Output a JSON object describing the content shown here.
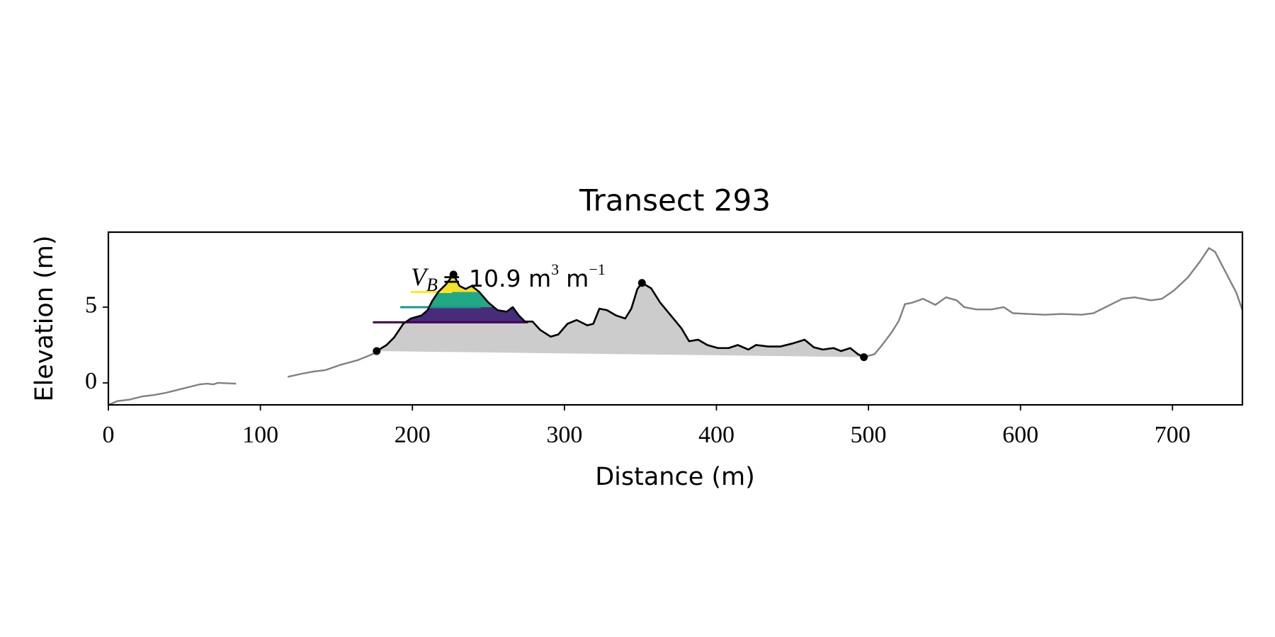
{
  "chart_data": {
    "type": "line",
    "title": "Transect 293",
    "xlabel": "Distance (m)",
    "ylabel": "Elevation (m)",
    "xlim": [
      0,
      746
    ],
    "ylim": [
      -1.45,
      9.95
    ],
    "xticks": [
      0,
      100,
      200,
      300,
      400,
      500,
      600,
      700
    ],
    "yticks": [
      0,
      5
    ],
    "grid": false,
    "annotation": {
      "symbol": "V",
      "subscript": "B",
      "text": "= 10.9 m",
      "exp1": "3",
      "unit2": "m",
      "exp2": "−1"
    },
    "series": [
      {
        "role": "profile",
        "color": "#808080",
        "x": [
          0,
          6,
          14,
          22,
          30,
          38,
          44,
          52,
          60,
          65,
          69,
          72,
          84,
          100,
          118,
          127,
          135,
          143,
          153,
          164,
          175,
          176.5,
          183,
          188,
          194,
          199,
          206,
          210,
          213,
          217,
          222,
          227,
          231,
          235,
          239,
          244,
          250,
          256,
          262,
          266,
          270,
          274,
          279,
          284,
          291,
          296,
          302,
          308,
          315,
          319,
          323,
          328,
          334,
          340,
          344,
          348,
          351,
          357,
          363,
          370,
          377,
          382,
          388,
          394,
          401,
          408,
          414,
          421,
          426,
          434,
          442,
          450,
          458,
          464,
          470,
          477,
          482,
          488,
          493,
          497,
          504,
          509,
          515,
          520,
          524,
          529,
          536,
          544,
          551,
          558,
          563,
          571,
          581,
          589,
          595,
          605,
          616,
          627,
          640,
          648,
          656,
          667,
          675,
          686,
          693,
          701,
          710,
          718,
          724,
          728,
          735,
          742,
          746
        ],
        "values": [
          -1.45,
          -1.2,
          -1.1,
          -0.9,
          -0.8,
          -0.65,
          -0.5,
          -0.3,
          -0.1,
          -0.05,
          -0.1,
          0,
          -0.05,
          null,
          0.4,
          0.6,
          0.75,
          0.85,
          1.2,
          1.5,
          1.95,
          2.1,
          2.5,
          3.0,
          3.9,
          4.25,
          4.45,
          4.8,
          5.4,
          6.0,
          6.5,
          7.15,
          6.4,
          6.2,
          6.4,
          6.0,
          5.3,
          4.8,
          4.7,
          5.0,
          4.45,
          4.05,
          4.05,
          3.5,
          3.05,
          3.2,
          3.9,
          4.15,
          3.8,
          3.9,
          4.9,
          4.8,
          4.45,
          4.25,
          4.9,
          6.2,
          6.6,
          6.25,
          5.3,
          4.45,
          3.6,
          2.75,
          2.85,
          2.5,
          2.3,
          2.3,
          2.5,
          2.2,
          2.5,
          2.4,
          2.4,
          2.6,
          2.85,
          2.35,
          2.2,
          2.3,
          2.1,
          2.3,
          1.9,
          1.7,
          1.9,
          2.5,
          3.3,
          4.1,
          5.2,
          5.3,
          5.55,
          5.15,
          5.65,
          5.45,
          5.0,
          4.85,
          4.85,
          5.0,
          4.6,
          4.55,
          4.5,
          4.55,
          4.5,
          4.6,
          5.0,
          5.55,
          5.65,
          5.45,
          5.55,
          6.1,
          6.95,
          8.0,
          8.9,
          8.65,
          7.3,
          5.95,
          4.8
        ]
      },
      {
        "role": "dune",
        "color": "#000000",
        "fill": "#cccccc",
        "x": [
          176.5,
          183,
          188,
          194,
          199,
          206,
          210,
          213,
          217,
          222,
          227,
          231,
          235,
          239,
          244,
          250,
          256,
          262,
          266,
          270,
          274,
          279,
          284,
          291,
          296,
          302,
          308,
          315,
          319,
          323,
          328,
          334,
          340,
          344,
          348,
          351,
          357,
          363,
          370,
          377,
          382,
          388,
          394,
          401,
          408,
          414,
          421,
          426,
          434,
          442,
          450,
          458,
          464,
          470,
          477,
          482,
          488,
          493,
          497
        ],
        "values": [
          2.1,
          2.5,
          3.0,
          3.9,
          4.25,
          4.45,
          4.8,
          5.4,
          6.0,
          6.5,
          7.15,
          6.4,
          6.2,
          6.4,
          6.0,
          5.3,
          4.8,
          4.7,
          5.0,
          4.45,
          4.05,
          4.05,
          3.5,
          3.05,
          3.2,
          3.9,
          4.15,
          3.8,
          3.9,
          4.9,
          4.8,
          4.45,
          4.25,
          4.9,
          6.2,
          6.6,
          6.25,
          5.3,
          4.45,
          3.6,
          2.75,
          2.85,
          2.5,
          2.3,
          2.3,
          2.5,
          2.2,
          2.5,
          2.4,
          2.4,
          2.6,
          2.85,
          2.35,
          2.2,
          2.3,
          2.1,
          2.3,
          1.9,
          1.7
        ]
      }
    ],
    "points": {
      "color": "#000000",
      "x": [
        176.5,
        227,
        351,
        497
      ],
      "y": [
        2.1,
        7.15,
        6.6,
        1.7
      ]
    },
    "thresholds": [
      {
        "value": 4.0,
        "color": "#440154",
        "band_color": "#472c7a",
        "x": [
          174,
          276
        ]
      },
      {
        "value": 5.0,
        "color": "#21918c",
        "band_color": "#22a884",
        "x": [
          192,
          245
        ]
      },
      {
        "value": 6.0,
        "color": "#fde725",
        "band_color": "#f2e02a",
        "x": [
          199,
          226
        ]
      }
    ]
  }
}
